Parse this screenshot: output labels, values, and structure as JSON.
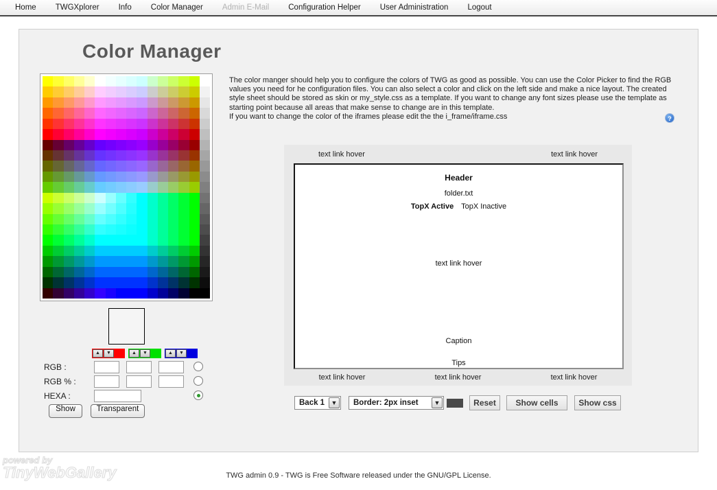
{
  "nav": {
    "items": [
      {
        "label": "Home",
        "disabled": false
      },
      {
        "label": "TWGXplorer",
        "disabled": false
      },
      {
        "label": "Info",
        "disabled": false
      },
      {
        "label": "Color Manager",
        "disabled": false
      },
      {
        "label": "Admin E-Mail",
        "disabled": true
      },
      {
        "label": "Configuration Helper",
        "disabled": false
      },
      {
        "label": "User Administration",
        "disabled": false
      },
      {
        "label": "Logout",
        "disabled": false
      }
    ]
  },
  "page": {
    "title": "Color Manager",
    "description_line1": "The color manger should help you to configure the colors of TWG as good as possible. You can use the Color Picker to find the RGB values you need for he configuration files. You can also select a color and click on the left side and make a nice layout. The created style sheet should be stored as skin or my_style.css as a template. If you want to change any font sizes please use the template as starting point because all areas that make sense to change are in this template.",
    "description_line2": "If you want to change the color of the iframes please edit the the i_frame/iframe.css",
    "help_glyph": "?"
  },
  "palette": {
    "rows": [
      [
        "#FFFF00",
        "#FFFF33",
        "#FFFF66",
        "#FFFF99",
        "#FFFFCC",
        "#FFFFFF",
        "#F2FFFF",
        "#E6FFFF",
        "#D9FFFF",
        "#CCFFFF",
        "#CCFFCC",
        "#CCFF99",
        "#CCFF66",
        "#CCFF33",
        "#CCFF00",
        "#FFFFFF"
      ],
      [
        "#FFCC00",
        "#FFCC33",
        "#FFCC66",
        "#FFCC99",
        "#FFCCCC",
        "#FFCCFF",
        "#F2CCFF",
        "#E6CCFF",
        "#D9CCFF",
        "#CCCCFF",
        "#CCCCCC",
        "#CCCC99",
        "#CCCC66",
        "#CCCC33",
        "#CCCC00",
        "#F2F2F2"
      ],
      [
        "#FF9900",
        "#FF9933",
        "#FF9966",
        "#FF9999",
        "#FF99CC",
        "#FF99FF",
        "#F299FF",
        "#E699FF",
        "#D999FF",
        "#CC99FF",
        "#CC99CC",
        "#CC9999",
        "#CC9966",
        "#CC9933",
        "#CC9900",
        "#E6E6E6"
      ],
      [
        "#FF6600",
        "#FF6633",
        "#FF6666",
        "#FF6699",
        "#FF66CC",
        "#FF66FF",
        "#F266FF",
        "#E666FF",
        "#D966FF",
        "#CC66FF",
        "#CC66CC",
        "#CC6699",
        "#CC6666",
        "#CC6633",
        "#CC6600",
        "#D9D9D9"
      ],
      [
        "#FF3300",
        "#FF3333",
        "#FF3366",
        "#FF3399",
        "#FF33CC",
        "#FF33FF",
        "#F233FF",
        "#E633FF",
        "#D933FF",
        "#CC33FF",
        "#CC33CC",
        "#CC3399",
        "#CC3366",
        "#CC3333",
        "#CC3300",
        "#CCCCCC"
      ],
      [
        "#FF0000",
        "#FF0033",
        "#FF0066",
        "#FF0099",
        "#FF00CC",
        "#FF00FF",
        "#F200FF",
        "#E600FF",
        "#D900FF",
        "#CC00FF",
        "#CC00CC",
        "#CC0099",
        "#CC0066",
        "#CC0033",
        "#CC0000",
        "#BFBFBF"
      ],
      [
        "#660000",
        "#660033",
        "#660066",
        "#660099",
        "#6600CC",
        "#6600FF",
        "#7300FF",
        "#8000FF",
        "#8C00FF",
        "#9900FF",
        "#9900CC",
        "#990099",
        "#990066",
        "#990033",
        "#990000",
        "#B3B3B3"
      ],
      [
        "#663300",
        "#663333",
        "#663366",
        "#663399",
        "#6633CC",
        "#6633FF",
        "#7333FF",
        "#8033FF",
        "#8C33FF",
        "#9933FF",
        "#9933CC",
        "#993399",
        "#993366",
        "#993333",
        "#993300",
        "#A6A6A6"
      ],
      [
        "#666600",
        "#666633",
        "#666666",
        "#666699",
        "#6666CC",
        "#6666FF",
        "#7366FF",
        "#8066FF",
        "#8C66FF",
        "#9966FF",
        "#9966CC",
        "#996699",
        "#996666",
        "#996633",
        "#996600",
        "#999999"
      ],
      [
        "#669900",
        "#669933",
        "#669966",
        "#669999",
        "#6699CC",
        "#6699FF",
        "#7399FF",
        "#8099FF",
        "#8C99FF",
        "#9999FF",
        "#9999CC",
        "#999999",
        "#999966",
        "#999933",
        "#999900",
        "#8C8C8C"
      ],
      [
        "#66CC00",
        "#66CC33",
        "#66CC66",
        "#66CC99",
        "#66CCCC",
        "#66CCFF",
        "#73CCFF",
        "#80CCFF",
        "#8CCCFF",
        "#99CCFF",
        "#99CCCC",
        "#99CC99",
        "#99CC66",
        "#99CC33",
        "#99CC00",
        "#808080"
      ],
      [
        "#CCFF00",
        "#CCFF33",
        "#CCFF66",
        "#CCFF99",
        "#CCFFCC",
        "#CCFFFF",
        "#99FFFF",
        "#66FFFF",
        "#33FFFF",
        "#00FFFF",
        "#00FFCC",
        "#00FF99",
        "#00FF66",
        "#00FF33",
        "#00FF00",
        "#737373"
      ],
      [
        "#99FF00",
        "#99FF33",
        "#99FF66",
        "#99FF99",
        "#99FFCC",
        "#99FFFF",
        "#73FFFF",
        "#4DFFFF",
        "#26FFFF",
        "#00FFFF",
        "#00FFCC",
        "#00FF99",
        "#00FF66",
        "#00FF33",
        "#00FF00",
        "#666666"
      ],
      [
        "#66FF00",
        "#66FF33",
        "#66FF66",
        "#66FF99",
        "#66FFCC",
        "#66FFFF",
        "#4DFFFF",
        "#33FFFF",
        "#1AFFFF",
        "#00FFFF",
        "#00FFCC",
        "#00FF99",
        "#00FF66",
        "#00FF33",
        "#00FF00",
        "#595959"
      ],
      [
        "#33FF00",
        "#33FF33",
        "#33FF66",
        "#33FF99",
        "#33FFCC",
        "#33FFFF",
        "#26FFFF",
        "#1AFFFF",
        "#0DFFFF",
        "#00FFFF",
        "#00FFCC",
        "#00FF99",
        "#00FF66",
        "#00FF33",
        "#00FF00",
        "#4D4D4D"
      ],
      [
        "#00FF00",
        "#00FF33",
        "#00FF66",
        "#00FF99",
        "#00FFCC",
        "#00FFFF",
        "#00FFFF",
        "#00FFFF",
        "#00FFFF",
        "#00FFFF",
        "#00FFCC",
        "#00FF99",
        "#00FF66",
        "#00FF33",
        "#00FF00",
        "#404040"
      ],
      [
        "#00CC00",
        "#00CC33",
        "#00CC66",
        "#00CC99",
        "#00CCCC",
        "#00CCFF",
        "#00CCFF",
        "#00CCFF",
        "#00CCFF",
        "#00CCFF",
        "#00CCCC",
        "#00CC99",
        "#00CC66",
        "#00CC33",
        "#00CC00",
        "#333333"
      ],
      [
        "#009900",
        "#009933",
        "#009966",
        "#009999",
        "#0099CC",
        "#0099FF",
        "#0099FF",
        "#0099FF",
        "#0099FF",
        "#0099FF",
        "#0099CC",
        "#009999",
        "#009966",
        "#009933",
        "#009900",
        "#262626"
      ],
      [
        "#006600",
        "#006633",
        "#006666",
        "#006699",
        "#0066CC",
        "#0066FF",
        "#0066FF",
        "#0066FF",
        "#0066FF",
        "#0066FF",
        "#0066CC",
        "#006699",
        "#006666",
        "#006633",
        "#006600",
        "#1A1A1A"
      ],
      [
        "#003300",
        "#003333",
        "#003366",
        "#003399",
        "#0033CC",
        "#0033FF",
        "#0033FF",
        "#0033FF",
        "#0033FF",
        "#0033FF",
        "#0033CC",
        "#003399",
        "#003366",
        "#003333",
        "#003300",
        "#0D0D0D"
      ],
      [
        "#330000",
        "#330033",
        "#330066",
        "#330099",
        "#3300CC",
        "#3300FF",
        "#1A00FF",
        "#0000FF",
        "#0000FF",
        "#0000FF",
        "#0000CC",
        "#000099",
        "#000066",
        "#000033",
        "#000000",
        "#000000"
      ]
    ]
  },
  "picker": {
    "labels": {
      "rgb": "RGB :",
      "rgb_percent": "RGB % :",
      "hexa": "HEXA :"
    },
    "values": {
      "rgb_r": "",
      "rgb_g": "",
      "rgb_b": "",
      "pct_r": "",
      "pct_g": "",
      "pct_b": "",
      "hexa": ""
    },
    "spinner_colors": {
      "red": "#ff0000",
      "green": "#00e000",
      "blue": "#0000e0"
    },
    "spinner_up_glyph": "▲",
    "spinner_down_glyph": "▼",
    "buttons": {
      "show": "Show",
      "transparent": "Transparent"
    }
  },
  "preview": {
    "top_links": [
      "text link hover",
      "text link hover"
    ],
    "bottom_links": [
      "text link hover",
      "text link hover",
      "text link hover"
    ],
    "inner": {
      "header": "Header",
      "folder": "folder.txt",
      "topx_active": "TopX Active",
      "topx_inactive": "TopX Inactive",
      "link": "text link hover",
      "caption": "Caption",
      "tips": "Tips"
    }
  },
  "controls": {
    "back_select_value": "Back 1",
    "border_select_value": "Border: 2px inset",
    "select_chevron_glyph": "▼",
    "border_swatch_color": "#4a4a4a",
    "reset": "Reset",
    "show_cells": "Show cells",
    "show_css": "Show css"
  },
  "footer": {
    "text": "TWG admin 0.9 - TWG is Free Software released under the GNU/GPL License.",
    "logo_line1": "powered by",
    "logo_line2": "TinyWebGallery"
  }
}
